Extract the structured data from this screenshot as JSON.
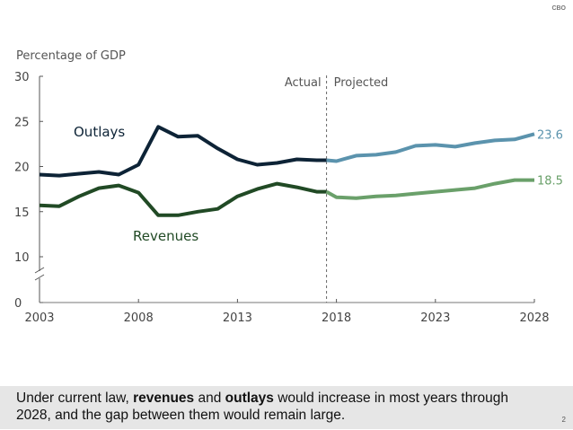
{
  "logo_text": "CBO",
  "page_number": "2",
  "caption": {
    "part1": "Under current law, ",
    "bold1": "revenues",
    "part2": " and ",
    "bold2": "outlays",
    "part3": " would increase in most years through 2028, and the gap between them would remain large."
  },
  "chart_data": {
    "type": "line",
    "ylabel": "Percentage of GDP",
    "yticks": [
      "0",
      "10",
      "15",
      "20",
      "25",
      "30"
    ],
    "xticks": [
      "2003",
      "2008",
      "2013",
      "2018",
      "2023",
      "2028"
    ],
    "ylim": [
      0,
      30
    ],
    "y_axis_break": [
      0,
      10
    ],
    "xlim": [
      2003,
      2028
    ],
    "divider_labels": {
      "left": "Actual",
      "right": "Projected"
    },
    "divider_x": 2017.5,
    "grid": false,
    "series": [
      {
        "name": "Outlays",
        "color_actual": "#0d2336",
        "color_projected": "#5b93ad",
        "actual": {
          "x": [
            2003,
            2004,
            2005,
            2006,
            2007,
            2008,
            2009,
            2010,
            2011,
            2012,
            2013,
            2014,
            2015,
            2016,
            2017
          ],
          "y": [
            19.1,
            19.0,
            19.2,
            19.4,
            19.1,
            20.2,
            24.4,
            23.3,
            23.4,
            22.0,
            20.8,
            20.2,
            20.4,
            20.8,
            20.7
          ]
        },
        "projected": {
          "x": [
            2018,
            2019,
            2020,
            2021,
            2022,
            2023,
            2024,
            2025,
            2026,
            2027,
            2028
          ],
          "y": [
            20.6,
            21.2,
            21.3,
            21.6,
            22.3,
            22.4,
            22.2,
            22.6,
            22.9,
            23.0,
            23.6
          ]
        },
        "end_label": "23.6"
      },
      {
        "name": "Revenues",
        "color_actual": "#214a25",
        "color_projected": "#6aa06a",
        "actual": {
          "x": [
            2003,
            2004,
            2005,
            2006,
            2007,
            2008,
            2009,
            2010,
            2011,
            2012,
            2013,
            2014,
            2015,
            2016,
            2017
          ],
          "y": [
            15.7,
            15.6,
            16.7,
            17.6,
            17.9,
            17.1,
            14.6,
            14.6,
            15.0,
            15.3,
            16.7,
            17.5,
            18.1,
            17.7,
            17.2
          ]
        },
        "projected": {
          "x": [
            2018,
            2019,
            2020,
            2021,
            2022,
            2023,
            2024,
            2025,
            2026,
            2027,
            2028
          ],
          "y": [
            16.6,
            16.5,
            16.7,
            16.8,
            17.0,
            17.2,
            17.4,
            17.6,
            18.1,
            18.5,
            18.5
          ]
        },
        "end_label": "18.5"
      }
    ]
  }
}
